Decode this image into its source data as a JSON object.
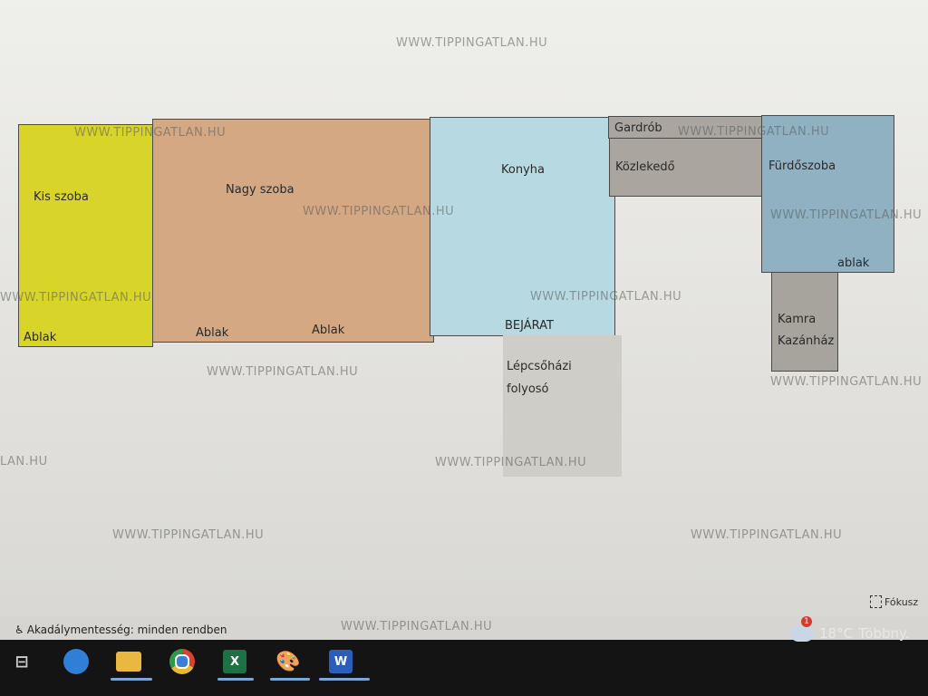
{
  "floor_plan": {
    "rooms": {
      "kis_szoba": {
        "name": "Kis szoba",
        "window": "Ablak",
        "color": "#d8d42a"
      },
      "nagy_szoba": {
        "name": "Nagy szoba",
        "window_1": "Ablak",
        "window_2": "Ablak",
        "color": "#d3a882"
      },
      "konyha": {
        "name": "Konyha",
        "entrance": "BEJÁRAT",
        "color": "#b7d9e2"
      },
      "gardrob": {
        "name": "Gardrób",
        "color": "#aaa69f"
      },
      "kozlekedo": {
        "name": "Közlekedő",
        "color": "#aaa69f"
      },
      "furdoszoba": {
        "name": "Fürdőszoba",
        "window": "ablak",
        "color": "#8fb1c2"
      },
      "kamra": {
        "name_1": "Kamra",
        "name_2": "Kazánház",
        "color": "#a7a39d"
      },
      "lepcsohazi": {
        "name_1": "Lépcsőházi",
        "name_2": "folyosó",
        "color": "#cfcdc8"
      }
    }
  },
  "watermark": "WWW.TIPPINGATLAN.HU",
  "watermark_partial": "LAN.HU",
  "status_bar": {
    "accessibility": "Akadálymentesség: minden rendben",
    "focus": "Fókusz"
  },
  "taskbar": {
    "apps": [
      "Task View",
      "Edge",
      "File Explorer",
      "Chrome",
      "Excel",
      "Paint",
      "Word"
    ],
    "excel_letter": "X",
    "word_letter": "W",
    "weather": {
      "temp": "18°C",
      "desc": "Többny.",
      "badge": "1"
    }
  }
}
